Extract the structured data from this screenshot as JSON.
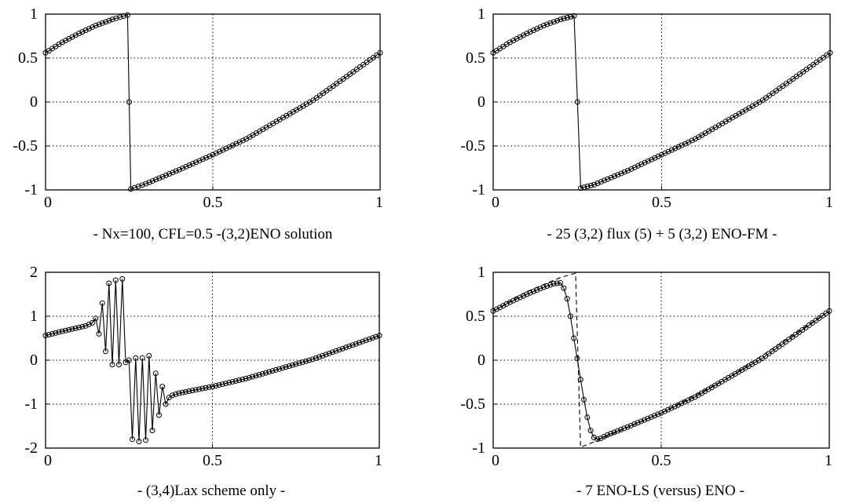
{
  "chart_data": [
    {
      "type": "line",
      "caption": "- Nx=100, CFL=0.5 -(3,2)ENO solution",
      "xlim": [
        0,
        1
      ],
      "ylim": [
        -1,
        1
      ],
      "xticks": [
        0,
        0.5,
        1
      ],
      "xtick_labels": [
        "0",
        "0.5",
        "1"
      ],
      "yticks": [
        1,
        0.5,
        0,
        -0.5,
        -1
      ],
      "ytick_labels": [
        "1",
        "0.5",
        "0",
        "-0.5",
        "-1"
      ],
      "grid": true,
      "markers": "circle",
      "series": [
        {
          "style": "solid",
          "x": [
            0,
            0.05,
            0.1,
            0.15,
            0.2,
            0.245,
            0.25,
            0.255,
            0.3,
            0.4,
            0.5,
            0.6,
            0.7,
            0.8,
            0.9,
            1.0
          ],
          "y": [
            0.56,
            0.68,
            0.78,
            0.87,
            0.94,
            0.99,
            0.0,
            -0.99,
            -0.93,
            -0.77,
            -0.6,
            -0.42,
            -0.2,
            0.02,
            0.29,
            0.56
          ]
        }
      ]
    },
    {
      "type": "line",
      "caption": "- 25 (3,2) flux (5) +  5 (3,2) ENO-FM -",
      "xlim": [
        0,
        1
      ],
      "ylim": [
        -1,
        1
      ],
      "xticks": [
        0,
        0.5,
        1
      ],
      "xtick_labels": [
        "0",
        "0.5",
        "1"
      ],
      "yticks": [
        1,
        0.5,
        0,
        -0.5,
        -1
      ],
      "ytick_labels": [
        "1",
        "0.5",
        "0",
        "-0.5",
        "-1"
      ],
      "grid": true,
      "markers": "circle",
      "series": [
        {
          "style": "solid",
          "x": [
            0,
            0.05,
            0.1,
            0.15,
            0.2,
            0.24,
            0.25,
            0.26,
            0.3,
            0.4,
            0.5,
            0.6,
            0.7,
            0.8,
            0.9,
            1.0
          ],
          "y": [
            0.56,
            0.68,
            0.78,
            0.87,
            0.94,
            0.98,
            0.0,
            -0.98,
            -0.94,
            -0.78,
            -0.6,
            -0.42,
            -0.2,
            0.02,
            0.29,
            0.56
          ]
        }
      ]
    },
    {
      "type": "line",
      "caption": "- (3,4)Lax scheme only -",
      "xlim": [
        0,
        1
      ],
      "ylim": [
        -2,
        2
      ],
      "xticks": [
        0,
        0.5,
        1
      ],
      "xtick_labels": [
        "0",
        "0.5",
        "1"
      ],
      "yticks": [
        2,
        1,
        0,
        -1,
        -2
      ],
      "ytick_labels": [
        "2",
        "1",
        "0",
        "-1",
        "-2"
      ],
      "grid": true,
      "markers": "circle",
      "series": [
        {
          "style": "solid",
          "x": [
            0,
            0.04,
            0.08,
            0.12,
            0.14,
            0.15,
            0.16,
            0.17,
            0.18,
            0.19,
            0.2,
            0.21,
            0.22,
            0.23,
            0.24,
            0.25,
            0.26,
            0.27,
            0.28,
            0.29,
            0.3,
            0.31,
            0.32,
            0.33,
            0.34,
            0.35,
            0.36,
            0.37,
            0.38,
            0.4,
            0.5,
            0.6,
            0.7,
            0.8,
            0.9,
            1.0
          ],
          "y": [
            0.56,
            0.64,
            0.71,
            0.78,
            0.85,
            0.95,
            0.6,
            1.3,
            0.2,
            1.75,
            -0.1,
            1.82,
            -0.1,
            1.85,
            -0.05,
            0.0,
            -1.8,
            0.05,
            -1.85,
            0.05,
            -1.82,
            0.1,
            -1.6,
            -0.3,
            -1.25,
            -0.6,
            -1.0,
            -0.85,
            -0.8,
            -0.75,
            -0.6,
            -0.42,
            -0.2,
            0.02,
            0.29,
            0.56
          ]
        }
      ]
    },
    {
      "type": "line",
      "caption": "- 7 ENO-LS (versus) ENO -",
      "xlim": [
        0,
        1
      ],
      "ylim": [
        -1,
        1
      ],
      "xticks": [
        0,
        0.5,
        1
      ],
      "xtick_labels": [
        "0",
        "0.5",
        "1"
      ],
      "yticks": [
        1,
        0.5,
        0,
        -0.5,
        -1
      ],
      "ytick_labels": [
        "1",
        "0.5",
        "0",
        "-0.5",
        "-1"
      ],
      "grid": true,
      "markers": "circle",
      "series": [
        {
          "style": "solid",
          "x": [
            0,
            0.05,
            0.1,
            0.15,
            0.18,
            0.2,
            0.21,
            0.22,
            0.23,
            0.24,
            0.25,
            0.26,
            0.27,
            0.28,
            0.29,
            0.3,
            0.31,
            0.32,
            0.34,
            0.4,
            0.5,
            0.6,
            0.7,
            0.8,
            0.9,
            1.0
          ],
          "y": [
            0.56,
            0.66,
            0.75,
            0.83,
            0.87,
            0.88,
            0.82,
            0.7,
            0.5,
            0.25,
            0.02,
            -0.22,
            -0.45,
            -0.65,
            -0.8,
            -0.88,
            -0.9,
            -0.89,
            -0.85,
            -0.76,
            -0.6,
            -0.42,
            -0.2,
            0.02,
            0.29,
            0.56
          ]
        },
        {
          "style": "dashed",
          "x": [
            0,
            0.1,
            0.2,
            0.245,
            0.26,
            0.3,
            0.5,
            0.7,
            1.0
          ],
          "y": [
            0.56,
            0.78,
            0.94,
            0.99,
            -0.99,
            -0.93,
            -0.6,
            -0.2,
            0.56
          ]
        }
      ]
    }
  ]
}
